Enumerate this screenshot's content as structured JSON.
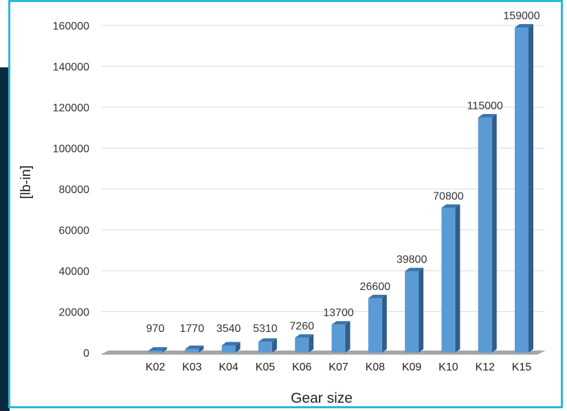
{
  "chart_data": {
    "type": "bar",
    "title": "",
    "xlabel": "Gear size",
    "ylabel": "[lb-in]",
    "categories": [
      "K02",
      "K03",
      "K04",
      "K05",
      "K06",
      "K07",
      "K08",
      "K09",
      "K10",
      "K12",
      "K15"
    ],
    "values": [
      970,
      1770,
      3540,
      5310,
      7260,
      13700,
      26600,
      39800,
      70800,
      115000,
      159000
    ],
    "data_labels": [
      "970",
      "1770",
      "3540",
      "5310",
      "7260",
      "13700",
      "26600",
      "39800",
      "70800",
      "115000",
      "159000"
    ],
    "ylim": [
      0,
      160000
    ],
    "yticks": [
      0,
      20000,
      40000,
      60000,
      80000,
      100000,
      120000,
      140000,
      160000
    ],
    "ytick_labels": [
      "0",
      "20000",
      "40000",
      "60000",
      "80000",
      "100000",
      "120000",
      "140000",
      "160000"
    ],
    "grid": true,
    "legend": "none",
    "style": "3d-column"
  },
  "colors": {
    "bar_front": "#5b9bd5",
    "bar_side": "#2f5f8a",
    "bar_top": "#3c75aa",
    "frame": "#27b8dc",
    "side_strip": "#0b2a40",
    "gridline": "#d9d9d9",
    "floor": "#a6a6a6"
  }
}
